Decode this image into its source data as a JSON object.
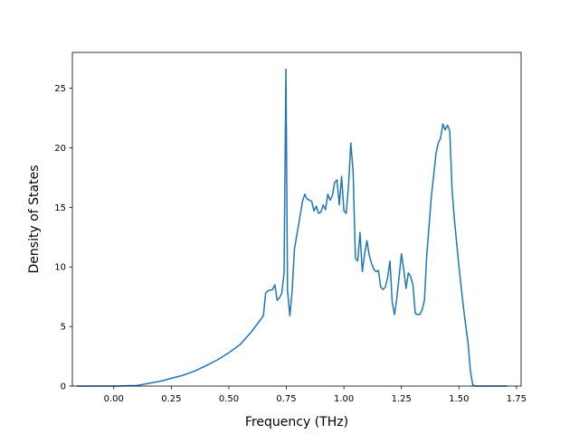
{
  "chart_data": {
    "type": "line",
    "title": "",
    "xlabel": "Frequency (THz)",
    "ylabel": "Density of States",
    "xlim": [
      -0.18,
      1.77
    ],
    "ylim": [
      0,
      28
    ],
    "grid": false,
    "xticks": [
      {
        "value": 0.0,
        "label": "0.00"
      },
      {
        "value": 0.25,
        "label": "0.25"
      },
      {
        "value": 0.5,
        "label": "0.50"
      },
      {
        "value": 0.75,
        "label": "0.75"
      },
      {
        "value": 1.0,
        "label": "1.00"
      },
      {
        "value": 1.25,
        "label": "1.25"
      },
      {
        "value": 1.5,
        "label": "1.50"
      },
      {
        "value": 1.75,
        "label": "1.75"
      }
    ],
    "yticks": [
      {
        "value": 0,
        "label": "0"
      },
      {
        "value": 5,
        "label": "5"
      },
      {
        "value": 10,
        "label": "10"
      },
      {
        "value": 15,
        "label": "15"
      },
      {
        "value": 20,
        "label": "20"
      },
      {
        "value": 25,
        "label": "25"
      }
    ],
    "series": [
      {
        "color": "#1f77b4",
        "points": [
          [
            -0.16,
            0
          ],
          [
            0.0,
            0
          ],
          [
            0.1,
            0.05
          ],
          [
            0.2,
            0.4
          ],
          [
            0.3,
            0.9
          ],
          [
            0.35,
            1.25
          ],
          [
            0.4,
            1.7
          ],
          [
            0.45,
            2.2
          ],
          [
            0.5,
            2.8
          ],
          [
            0.55,
            3.5
          ],
          [
            0.6,
            4.6
          ],
          [
            0.65,
            5.9
          ],
          [
            0.66,
            7.8
          ],
          [
            0.67,
            8.0
          ],
          [
            0.69,
            8.1
          ],
          [
            0.7,
            8.5
          ],
          [
            0.71,
            7.2
          ],
          [
            0.72,
            7.4
          ],
          [
            0.73,
            7.8
          ],
          [
            0.74,
            9.5
          ],
          [
            0.748,
            26.6
          ],
          [
            0.755,
            8.0
          ],
          [
            0.765,
            5.9
          ],
          [
            0.775,
            8.0
          ],
          [
            0.785,
            11.5
          ],
          [
            0.8,
            13.2
          ],
          [
            0.82,
            15.5
          ],
          [
            0.83,
            16.1
          ],
          [
            0.84,
            15.7
          ],
          [
            0.86,
            15.5
          ],
          [
            0.87,
            14.7
          ],
          [
            0.88,
            15.1
          ],
          [
            0.89,
            14.5
          ],
          [
            0.9,
            14.6
          ],
          [
            0.91,
            15.2
          ],
          [
            0.92,
            14.8
          ],
          [
            0.93,
            16.1
          ],
          [
            0.94,
            15.6
          ],
          [
            0.95,
            16.0
          ],
          [
            0.96,
            17.1
          ],
          [
            0.97,
            17.3
          ],
          [
            0.98,
            15.2
          ],
          [
            0.99,
            17.6
          ],
          [
            1.0,
            14.7
          ],
          [
            1.01,
            14.5
          ],
          [
            1.02,
            16.8
          ],
          [
            1.03,
            20.4
          ],
          [
            1.04,
            18.0
          ],
          [
            1.05,
            10.7
          ],
          [
            1.06,
            10.5
          ],
          [
            1.07,
            12.9
          ],
          [
            1.08,
            9.6
          ],
          [
            1.09,
            11.1
          ],
          [
            1.1,
            12.2
          ],
          [
            1.11,
            11.0
          ],
          [
            1.12,
            10.3
          ],
          [
            1.13,
            9.8
          ],
          [
            1.14,
            9.6
          ],
          [
            1.15,
            9.7
          ],
          [
            1.16,
            8.3
          ],
          [
            1.17,
            8.1
          ],
          [
            1.18,
            8.3
          ],
          [
            1.19,
            9.1
          ],
          [
            1.2,
            10.5
          ],
          [
            1.21,
            7.0
          ],
          [
            1.22,
            6.0
          ],
          [
            1.23,
            7.4
          ],
          [
            1.24,
            9.2
          ],
          [
            1.25,
            11.1
          ],
          [
            1.26,
            9.8
          ],
          [
            1.27,
            8.2
          ],
          [
            1.28,
            9.5
          ],
          [
            1.29,
            9.2
          ],
          [
            1.3,
            8.5
          ],
          [
            1.31,
            6.1
          ],
          [
            1.32,
            6.0
          ],
          [
            1.33,
            6.0
          ],
          [
            1.34,
            6.4
          ],
          [
            1.35,
            7.2
          ],
          [
            1.36,
            11.0
          ],
          [
            1.38,
            15.9
          ],
          [
            1.4,
            19.5
          ],
          [
            1.41,
            20.4
          ],
          [
            1.42,
            20.8
          ],
          [
            1.43,
            22.0
          ],
          [
            1.44,
            21.5
          ],
          [
            1.45,
            21.9
          ],
          [
            1.46,
            21.4
          ],
          [
            1.47,
            16.5
          ],
          [
            1.48,
            14.0
          ],
          [
            1.5,
            10.0
          ],
          [
            1.52,
            6.5
          ],
          [
            1.54,
            3.5
          ],
          [
            1.55,
            1.2
          ],
          [
            1.56,
            0.1
          ],
          [
            1.57,
            0
          ],
          [
            1.71,
            0
          ]
        ]
      }
    ]
  }
}
